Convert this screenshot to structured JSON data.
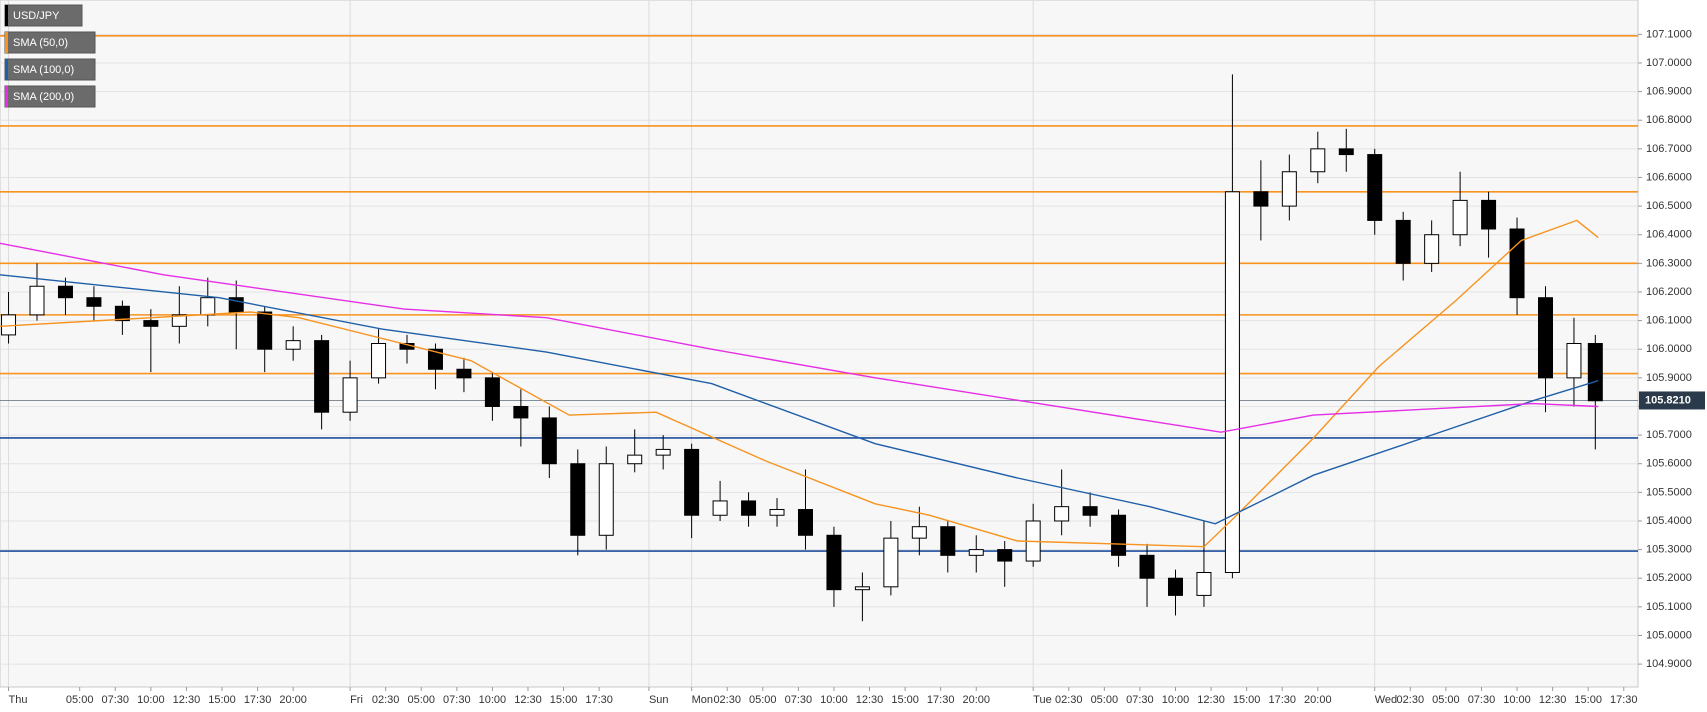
{
  "chart_data": {
    "type": "candlestick",
    "symbol": "USD/JPY",
    "candles": {
      "x": [
        0,
        2,
        4,
        6,
        8,
        10,
        12,
        14,
        16,
        18,
        20,
        22,
        24,
        26,
        28,
        30,
        32,
        34,
        36,
        38,
        40,
        42,
        44,
        46,
        48,
        50,
        52,
        54,
        56,
        58,
        60,
        62,
        64,
        66,
        68,
        70,
        72,
        74,
        76,
        78,
        80,
        82,
        84,
        86,
        88,
        90,
        92,
        94,
        96,
        98,
        100,
        102,
        104,
        106,
        108,
        110,
        111.5
      ],
      "open": [
        106.05,
        106.12,
        106.22,
        106.18,
        106.15,
        106.1,
        106.08,
        106.12,
        106.18,
        106.13,
        106.0,
        106.03,
        105.78,
        105.9,
        106.02,
        106.0,
        105.93,
        105.9,
        105.8,
        105.76,
        105.6,
        105.35,
        105.6,
        105.63,
        105.65,
        105.42,
        105.47,
        105.42,
        105.44,
        105.35,
        105.16,
        105.17,
        105.34,
        105.38,
        105.28,
        105.3,
        105.26,
        105.4,
        105.45,
        105.42,
        105.28,
        105.2,
        105.14,
        105.22,
        106.55,
        106.5,
        106.62,
        106.7,
        106.68,
        106.45,
        106.3,
        106.4,
        106.52,
        106.42,
        106.18,
        105.9,
        106.02
      ],
      "high": [
        106.2,
        106.3,
        106.25,
        106.22,
        106.17,
        106.14,
        106.22,
        106.25,
        106.24,
        106.15,
        106.08,
        106.05,
        105.96,
        106.07,
        106.05,
        106.02,
        105.97,
        105.92,
        105.86,
        105.8,
        105.65,
        105.66,
        105.72,
        105.7,
        105.67,
        105.54,
        105.5,
        105.48,
        105.58,
        105.38,
        105.22,
        105.4,
        105.45,
        105.4,
        105.35,
        105.33,
        105.46,
        105.58,
        105.5,
        105.44,
        105.32,
        105.23,
        105.4,
        106.96,
        106.66,
        106.68,
        106.76,
        106.77,
        106.7,
        106.48,
        106.45,
        106.62,
        106.55,
        106.46,
        106.22,
        106.11,
        106.05
      ],
      "low": [
        106.02,
        106.1,
        106.12,
        106.1,
        106.05,
        105.92,
        106.02,
        106.08,
        106.0,
        105.92,
        105.96,
        105.72,
        105.75,
        105.88,
        105.95,
        105.86,
        105.85,
        105.75,
        105.66,
        105.55,
        105.28,
        105.3,
        105.57,
        105.58,
        105.34,
        105.4,
        105.38,
        105.38,
        105.3,
        105.1,
        105.05,
        105.14,
        105.28,
        105.22,
        105.22,
        105.17,
        105.24,
        105.35,
        105.38,
        105.24,
        105.1,
        105.07,
        105.1,
        105.2,
        106.38,
        106.45,
        106.58,
        106.62,
        106.4,
        106.24,
        106.27,
        106.36,
        106.32,
        106.12,
        105.78,
        105.8,
        105.65
      ],
      "close": [
        106.12,
        106.22,
        106.18,
        106.15,
        106.1,
        106.08,
        106.12,
        106.18,
        106.13,
        106.0,
        106.03,
        105.78,
        105.9,
        106.02,
        106.0,
        105.93,
        105.9,
        105.8,
        105.76,
        105.6,
        105.35,
        105.6,
        105.63,
        105.65,
        105.42,
        105.47,
        105.42,
        105.44,
        105.35,
        105.16,
        105.17,
        105.34,
        105.38,
        105.28,
        105.3,
        105.26,
        105.4,
        105.45,
        105.42,
        105.28,
        105.2,
        105.14,
        105.22,
        106.55,
        106.5,
        106.62,
        106.7,
        106.68,
        106.45,
        106.3,
        106.4,
        106.52,
        106.42,
        106.18,
        105.9,
        106.02,
        105.82
      ]
    },
    "series": [
      {
        "name": "SMA (50,0)",
        "color": "#f7931e",
        "x": [
          -0.6,
          17,
          20.4,
          32.5,
          39.4,
          45.5,
          53.2,
          60.9,
          64.7,
          70.9,
          77.8,
          84,
          86.3,
          91.7,
          96.3,
          101.7,
          106.3,
          110.2,
          111.7
        ],
        "values": [
          106.08,
          106.13,
          106.11,
          105.96,
          105.77,
          105.78,
          105.61,
          105.46,
          105.42,
          105.33,
          105.32,
          105.31,
          105.42,
          105.69,
          105.94,
          106.17,
          106.38,
          106.45,
          106.39
        ]
      },
      {
        "name": "SMA (100,0)",
        "color": "#1f5fa8",
        "x": [
          -0.6,
          14.8,
          26.3,
          37.8,
          49.4,
          60.9,
          70.9,
          80.2,
          84.8,
          91.7,
          99.4,
          107.1,
          111.7
        ],
        "values": [
          106.26,
          106.18,
          106.07,
          105.99,
          105.88,
          105.67,
          105.55,
          105.45,
          105.39,
          105.56,
          105.69,
          105.82,
          105.89
        ]
      },
      {
        "name": "SMA (200,0)",
        "color": "#e62ee6",
        "x": [
          -0.6,
          10.9,
          27.8,
          37.8,
          49.4,
          60.9,
          72.4,
          85.2,
          91.7,
          99.4,
          107.1,
          111.7
        ],
        "values": [
          106.37,
          106.26,
          106.14,
          106.11,
          106.0,
          105.9,
          105.81,
          105.71,
          105.77,
          105.79,
          105.81,
          105.8
        ]
      }
    ],
    "hlines": [
      {
        "color": "#f7931e",
        "values": [
          107.095,
          106.78,
          106.55,
          106.3,
          106.12,
          105.915
        ]
      },
      {
        "color": "#1f4e9c",
        "values": [
          105.69,
          105.295
        ]
      }
    ],
    "last_price": {
      "value": 105.821,
      "label": "105.8210"
    },
    "xlim": [
      -0.6,
      114.5
    ],
    "ylim": [
      104.82,
      107.22
    ],
    "xticks": [
      {
        "value": 0,
        "label": "Thu"
      },
      {
        "value": 5,
        "label": "05:00"
      },
      {
        "value": 7.5,
        "label": "07:30"
      },
      {
        "value": 10,
        "label": "10:00"
      },
      {
        "value": 12.5,
        "label": "12:30"
      },
      {
        "value": 15,
        "label": "15:00"
      },
      {
        "value": 17.5,
        "label": "17:30"
      },
      {
        "value": 20,
        "label": "20:00"
      },
      {
        "value": 24,
        "label": "Fri"
      },
      {
        "value": 26.5,
        "label": "02:30"
      },
      {
        "value": 29,
        "label": "05:00"
      },
      {
        "value": 31.5,
        "label": "07:30"
      },
      {
        "value": 34,
        "label": "10:00"
      },
      {
        "value": 36.5,
        "label": "12:30"
      },
      {
        "value": 39,
        "label": "15:00"
      },
      {
        "value": 41.5,
        "label": "17:30"
      },
      {
        "value": 45,
        "label": "Sun"
      },
      {
        "value": 48,
        "label": "Mon"
      },
      {
        "value": 50.5,
        "label": "02:30"
      },
      {
        "value": 53,
        "label": "05:00"
      },
      {
        "value": 55.5,
        "label": "07:30"
      },
      {
        "value": 58,
        "label": "10:00"
      },
      {
        "value": 60.5,
        "label": "12:30"
      },
      {
        "value": 63,
        "label": "15:00"
      },
      {
        "value": 65.5,
        "label": "17:30"
      },
      {
        "value": 68,
        "label": "20:00"
      },
      {
        "value": 72,
        "label": "Tue"
      },
      {
        "value": 74.5,
        "label": "02:30"
      },
      {
        "value": 77,
        "label": "05:00"
      },
      {
        "value": 79.5,
        "label": "07:30"
      },
      {
        "value": 82,
        "label": "10:00"
      },
      {
        "value": 84.5,
        "label": "12:30"
      },
      {
        "value": 87,
        "label": "15:00"
      },
      {
        "value": 89.5,
        "label": "17:30"
      },
      {
        "value": 92,
        "label": "20:00"
      },
      {
        "value": 96,
        "label": "Wed"
      },
      {
        "value": 98.5,
        "label": "02:30"
      },
      {
        "value": 101,
        "label": "05:00"
      },
      {
        "value": 103.5,
        "label": "07:30"
      },
      {
        "value": 106,
        "label": "10:00"
      },
      {
        "value": 108.5,
        "label": "12:30"
      },
      {
        "value": 111,
        "label": "15:00"
      },
      {
        "value": 113.5,
        "label": "17:30"
      }
    ],
    "yticks": [
      {
        "value": 104.9,
        "label": "104.9000"
      },
      {
        "value": 105.0,
        "label": "105.0000"
      },
      {
        "value": 105.1,
        "label": "105.1000"
      },
      {
        "value": 105.2,
        "label": "105.2000"
      },
      {
        "value": 105.3,
        "label": "105.3000"
      },
      {
        "value": 105.4,
        "label": "105.4000"
      },
      {
        "value": 105.5,
        "label": "105.5000"
      },
      {
        "value": 105.6,
        "label": "105.6000"
      },
      {
        "value": 105.7,
        "label": "105.7000"
      },
      {
        "value": 105.8,
        "label": "105.8000"
      },
      {
        "value": 105.9,
        "label": "105.9000"
      },
      {
        "value": 106.0,
        "label": "106.0000"
      },
      {
        "value": 106.1,
        "label": "106.1000"
      },
      {
        "value": 106.2,
        "label": "106.2000"
      },
      {
        "value": 106.3,
        "label": "106.3000"
      },
      {
        "value": 106.4,
        "label": "106.4000"
      },
      {
        "value": 106.5,
        "label": "106.5000"
      },
      {
        "value": 106.6,
        "label": "106.6000"
      },
      {
        "value": 106.7,
        "label": "106.7000"
      },
      {
        "value": 106.8,
        "label": "106.8000"
      },
      {
        "value": 106.9,
        "label": "106.9000"
      },
      {
        "value": 107.0,
        "label": "107.0000"
      },
      {
        "value": 107.1,
        "label": "107.1000"
      }
    ],
    "grid": true
  }
}
